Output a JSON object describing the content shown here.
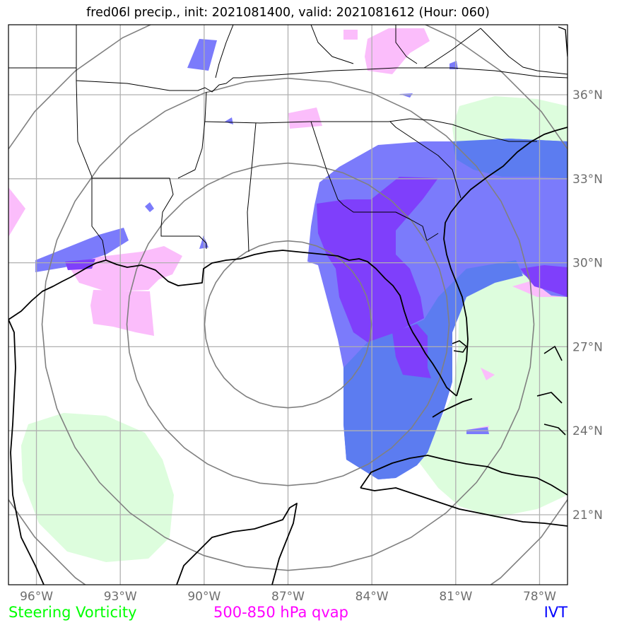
{
  "title": "fred06l precip., init: 2021081400, valid: 2021081612 (Hour: 060)",
  "map": {
    "lon_range": [
      -97.0,
      -77.0
    ],
    "lat_range": [
      18.5,
      38.5
    ],
    "storm_center": {
      "lon": -87.0,
      "lat": 27.8
    },
    "range_ring_count": 4,
    "longitude_ticks": [
      {
        "lon": -96,
        "label": "96°W"
      },
      {
        "lon": -93,
        "label": "93°W"
      },
      {
        "lon": -90,
        "label": "90°W"
      },
      {
        "lon": -87,
        "label": "87°W"
      },
      {
        "lon": -84,
        "label": "84°W"
      },
      {
        "lon": -81,
        "label": "81°W"
      },
      {
        "lon": -78,
        "label": "78°W"
      }
    ],
    "latitude_ticks": [
      {
        "lat": 36,
        "label": "36°N"
      },
      {
        "lat": 33,
        "label": "33°N"
      },
      {
        "lat": 30,
        "label": "30°N"
      },
      {
        "lat": 27,
        "label": "27°N"
      },
      {
        "lat": 24,
        "label": "24°N"
      },
      {
        "lat": 21,
        "label": "21°N"
      }
    ],
    "colors": {
      "steering_vorticity": "#ddfddd",
      "qvap": "#fbbdfb",
      "ivt": "#7b7bfb",
      "ivt_dark": "#7f3ffb",
      "ivt_overlap": "#5c7cf0",
      "gridline": "#b0b0b0",
      "ring": "#808080",
      "coastline": "#000000"
    }
  },
  "legend": [
    {
      "label": "Steering Vorticity",
      "color": "#00ff00"
    },
    {
      "label": "500-850 hPa qvap",
      "color": "#ff00ff"
    },
    {
      "label": "IVT",
      "color": "#0000ff"
    }
  ]
}
